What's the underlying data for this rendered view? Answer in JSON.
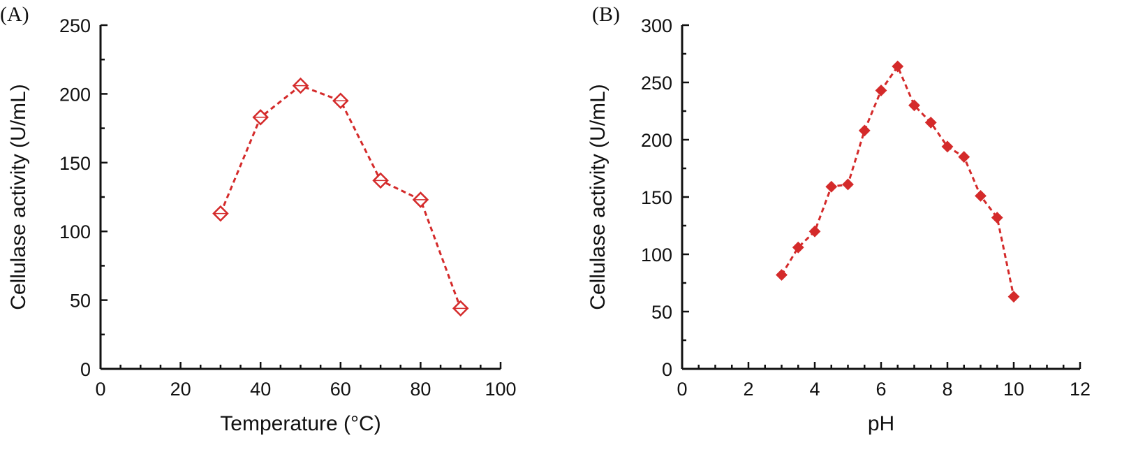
{
  "chart_data": [
    {
      "panel_label": "(A)",
      "type": "line",
      "marker": "diamond-open",
      "xlabel": "Temperature (°C)",
      "ylabel": "Cellulase activity (U/mL)",
      "xlim": [
        0,
        100
      ],
      "ylim": [
        0,
        250
      ],
      "x_ticks": [
        0,
        20,
        40,
        60,
        80,
        100
      ],
      "y_ticks": [
        0,
        50,
        100,
        150,
        200,
        250
      ],
      "x_minor_step": 5,
      "y_minor_step": 25,
      "series": [
        {
          "name": "Cellulase activity",
          "color": "#d42a2a",
          "x": [
            30,
            40,
            50,
            60,
            70,
            80,
            90
          ],
          "y": [
            113,
            183,
            206,
            195,
            137,
            123,
            44
          ]
        }
      ]
    },
    {
      "panel_label": "(B)",
      "type": "line",
      "marker": "diamond-filled",
      "xlabel": "pH",
      "ylabel": "Cellulase activity (U/mL)",
      "xlim": [
        0,
        12
      ],
      "ylim": [
        0,
        300
      ],
      "x_ticks": [
        0,
        2,
        4,
        6,
        8,
        10,
        12
      ],
      "y_ticks": [
        0,
        50,
        100,
        150,
        200,
        250,
        300
      ],
      "x_minor_step": 0.5,
      "y_minor_step": 25,
      "series": [
        {
          "name": "Cellulase activity",
          "color": "#d42a2a",
          "x": [
            3,
            3.5,
            4,
            4.5,
            5,
            5.5,
            6,
            6.5,
            7,
            7.5,
            8,
            8.5,
            9,
            9.5,
            10
          ],
          "y": [
            82,
            106,
            120,
            159,
            161,
            208,
            243,
            264,
            230,
            215,
            194,
            185,
            151,
            132,
            63
          ]
        }
      ]
    }
  ]
}
